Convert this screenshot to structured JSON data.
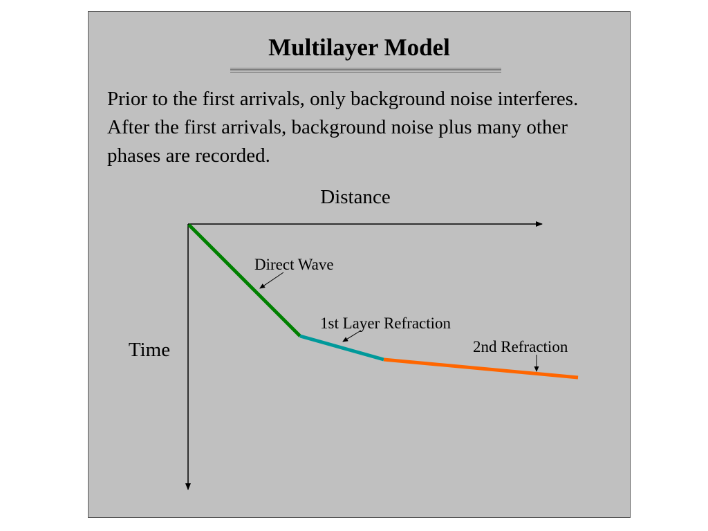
{
  "slide": {
    "title": "Multilayer Model",
    "body_text": "Prior to the first arrivals, only background noise interferes.  After the first arrivals, background noise plus many other phases are recorded."
  },
  "diagram": {
    "x_axis_label": "Distance",
    "y_axis_label": "Time",
    "segments": [
      {
        "label": "Direct Wave",
        "color": "#008000"
      },
      {
        "label": "1st Layer Refraction",
        "color": "#00999a"
      },
      {
        "label": "2nd Refraction",
        "color": "#ff6600"
      }
    ]
  }
}
